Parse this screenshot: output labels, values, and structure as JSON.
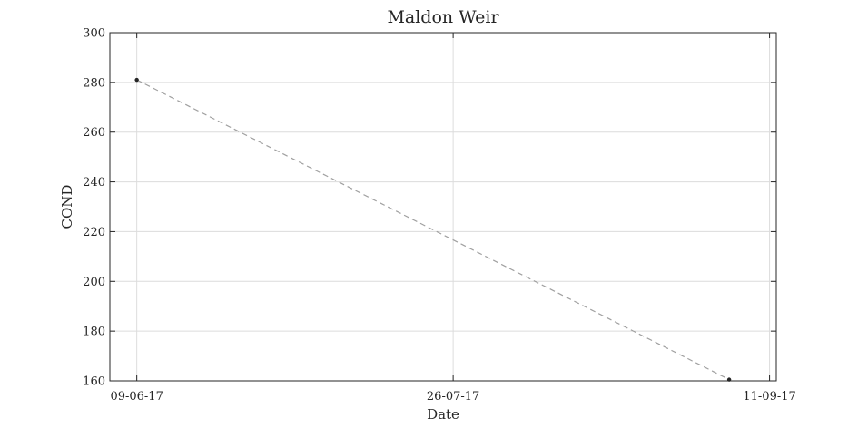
{
  "chart_data": {
    "type": "line",
    "title": "Maldon Weir",
    "xlabel": "Date",
    "ylabel": "COND",
    "x_ticks": [
      {
        "date": "2017-06-09",
        "label": "09-06-17"
      },
      {
        "date": "2017-07-26",
        "label": "26-07-17"
      },
      {
        "date": "2017-09-11",
        "label": "11-09-17"
      }
    ],
    "y_ticks": [
      160,
      180,
      200,
      220,
      240,
      260,
      280,
      300
    ],
    "xlim": [
      "2017-06-05",
      "2017-09-12"
    ],
    "ylim": [
      160,
      300
    ],
    "grid": true,
    "series": [
      {
        "points": [
          {
            "x": "2017-06-09",
            "y": 281
          },
          {
            "x": "2017-09-05",
            "y": 160.5
          }
        ],
        "line_style": "dashed",
        "line_color": "#a0a0a0",
        "marker_color": "#262626"
      }
    ]
  }
}
